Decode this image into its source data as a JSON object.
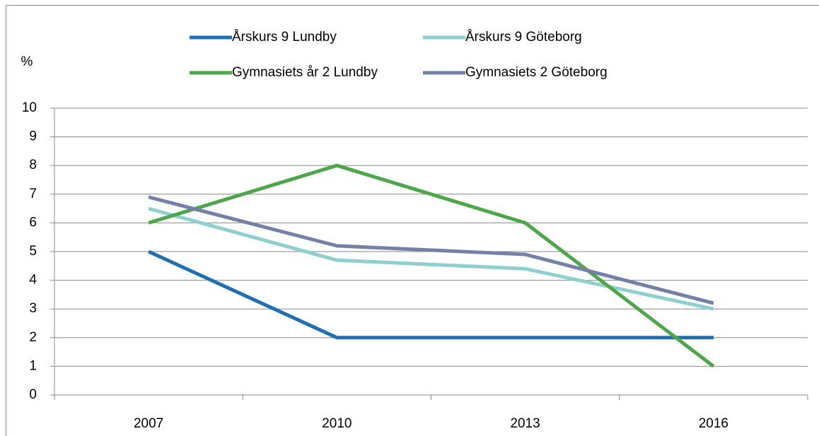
{
  "chart_data": {
    "type": "line",
    "y_label": "%",
    "categories": [
      "2007",
      "2010",
      "2013",
      "2016"
    ],
    "series": [
      {
        "name": "Årskurs 9 Lundby",
        "color": "#1f6fb5",
        "values": [
          5,
          2,
          2,
          2
        ]
      },
      {
        "name": "Årskurs 9 Göteborg",
        "color": "#8ecfd0",
        "values": [
          6.5,
          4.7,
          4.4,
          3.0
        ]
      },
      {
        "name": "Gymnasiets år 2 Lundby",
        "color": "#4ea64a",
        "values": [
          6,
          8,
          6,
          1
        ]
      },
      {
        "name": "Gymnasiets 2 Göteborg",
        "color": "#7580a8",
        "values": [
          6.9,
          5.2,
          4.9,
          3.2
        ]
      }
    ],
    "ylim": [
      0,
      10
    ],
    "yticks": [
      0,
      1,
      2,
      3,
      4,
      5,
      6,
      7,
      8,
      9,
      10
    ],
    "grid": true,
    "legend": "top"
  }
}
